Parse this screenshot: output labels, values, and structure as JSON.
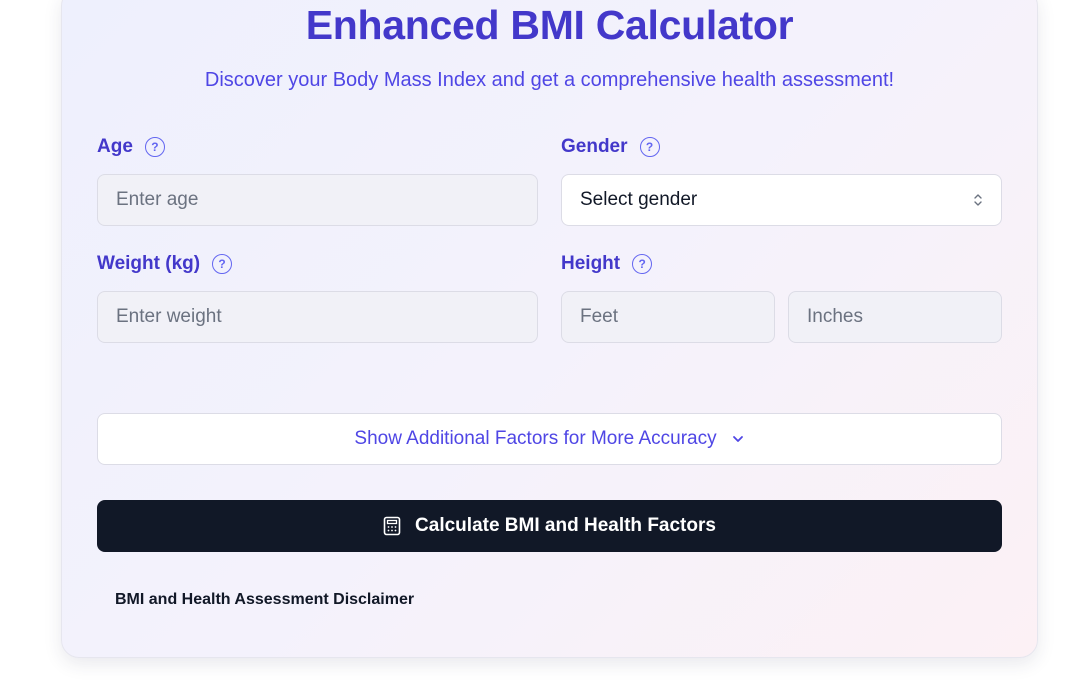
{
  "header": {
    "title": "Enhanced BMI Calculator",
    "subtitle": "Discover your Body Mass Index and get a comprehensive health assessment!"
  },
  "form": {
    "age": {
      "label": "Age",
      "placeholder": "Enter age",
      "help_icon": "question-circle-icon"
    },
    "gender": {
      "label": "Gender",
      "selected": "Select gender",
      "help_icon": "question-circle-icon"
    },
    "weight": {
      "label": "Weight (kg)",
      "placeholder": "Enter weight",
      "help_icon": "question-circle-icon"
    },
    "height": {
      "label": "Height",
      "feet_placeholder": "Feet",
      "inches_placeholder": "Inches",
      "help_icon": "question-circle-icon"
    }
  },
  "additional_toggle": {
    "label": "Show Additional Factors for More Accuracy",
    "icon": "chevron-down-icon"
  },
  "calculate_button": {
    "label": "Calculate BMI and Health Factors",
    "icon": "calculator-icon"
  },
  "disclaimer": {
    "label": "BMI and Health Assessment Disclaimer"
  },
  "colors": {
    "accent": "#4338ca",
    "accent_light": "#4f46e5",
    "button_bg": "#111827"
  }
}
